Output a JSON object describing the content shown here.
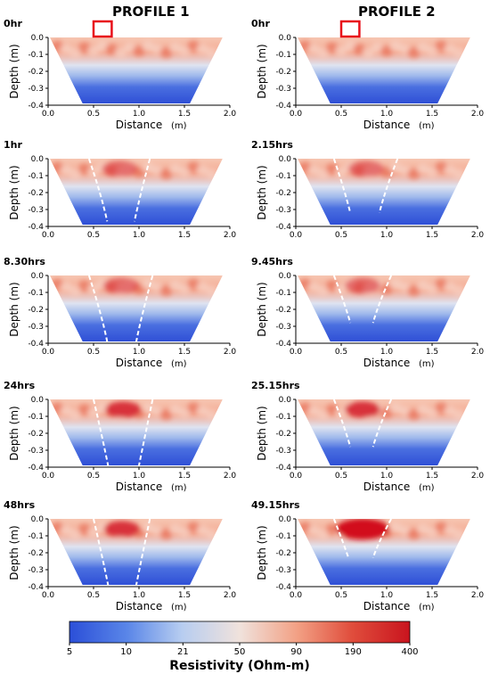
{
  "headers": [
    "PROFILE 1",
    "PROFILE 2"
  ],
  "colors": {
    "low": "#2b4fd8",
    "mid": "#dfe6f3",
    "high": "#d61f2a",
    "marker": "#e8101a",
    "dashed_boundary": "#ffffff"
  },
  "chart_data": [
    {
      "type": "heatmap",
      "profile": "PROFILE 1",
      "time": "0hr",
      "xlabel": "Distance",
      "xunit": "(m)",
      "ylabel": "Depth (m)",
      "xlim": [
        0,
        2.0
      ],
      "ylim": [
        -0.4,
        0.0
      ],
      "xticks": [
        "0.0",
        "0.5",
        "1.0",
        "1.5",
        "2.0"
      ],
      "yticks": [
        "0.0",
        "-0.1",
        "-0.2",
        "-0.3",
        "-0.4"
      ],
      "marker_x": [
        0.5,
        0.7
      ],
      "plume_half_width": null
    },
    {
      "type": "heatmap",
      "profile": "PROFILE 2",
      "time": "0hr",
      "xlabel": "Distance",
      "xunit": "(m)",
      "ylabel": "Depth (m)",
      "xlim": [
        0,
        2.0
      ],
      "ylim": [
        -0.4,
        0.0
      ],
      "xticks": [
        "0.0",
        "0.5",
        "1.0",
        "1.5",
        "2.0"
      ],
      "yticks": [
        "0.0",
        "-0.1",
        "-0.2",
        "-0.3",
        "-0.4"
      ],
      "marker_x": [
        0.5,
        0.7
      ],
      "plume_half_width": null
    },
    {
      "type": "heatmap",
      "profile": "PROFILE 1",
      "time": "1hr",
      "xlabel": "",
      "xunit": "",
      "ylabel": "Depth (m)",
      "xlim": [
        0,
        2.0
      ],
      "ylim": [
        -0.4,
        0.0
      ],
      "xticks": [
        "0.0",
        "0.5",
        "1.0",
        "1.5",
        "2.0"
      ],
      "yticks": [
        "0.0",
        "-0.1",
        "-0.2",
        "-0.3",
        "-0.4"
      ],
      "plume": {
        "top_left": 0.45,
        "top_right": 1.12,
        "bottom_left": 0.65,
        "bottom_right": 0.95,
        "bottom_depth": -0.37
      }
    },
    {
      "type": "heatmap",
      "profile": "PROFILE 2",
      "time": "2.15hrs",
      "xlabel": "",
      "xunit": "",
      "ylabel": "Depth (m)",
      "xlim": [
        0,
        2.0
      ],
      "ylim": [
        -0.4,
        0.0
      ],
      "xticks": [
        "0.0",
        "0.5",
        "1.0",
        "1.5",
        "2.0"
      ],
      "yticks": [
        "0.0",
        "-0.1",
        "-0.2",
        "-0.3",
        "-0.4"
      ],
      "plume": {
        "top_left": 0.42,
        "top_right": 1.12,
        "bottom_left": 0.6,
        "bottom_right": 0.92,
        "bottom_depth": -0.32
      }
    },
    {
      "type": "heatmap",
      "profile": "PROFILE 1",
      "time": "8.30hrs",
      "xlabel": "Distance",
      "xunit": "(m)",
      "ylabel": "Depth (m)",
      "xlim": [
        0,
        2.0
      ],
      "ylim": [
        -0.4,
        0.0
      ],
      "xticks": [
        "0.0",
        "0.5",
        "1.0",
        "1.5",
        "2.0"
      ],
      "yticks": [
        "0.0",
        "-0.1",
        "-0.2",
        "-0.3",
        "-0.4"
      ],
      "plume": {
        "top_left": 0.45,
        "top_right": 1.15,
        "bottom_left": 0.65,
        "bottom_right": 0.97,
        "bottom_depth": -0.39
      }
    },
    {
      "type": "heatmap",
      "profile": "PROFILE 2",
      "time": "9.45hrs",
      "xlabel": "Distance",
      "xunit": "(m)",
      "ylabel": "Depth (m)",
      "xlim": [
        0,
        2.0
      ],
      "ylim": [
        -0.4,
        0.0
      ],
      "xticks": [
        "0.0",
        "0.5",
        "1.0",
        "1.5",
        "2.0"
      ],
      "yticks": [
        "0.0",
        "-0.1",
        "-0.2",
        "-0.3",
        "-0.4"
      ],
      "plume": {
        "top_left": 0.42,
        "top_right": 1.05,
        "bottom_left": 0.6,
        "bottom_right": 0.85,
        "bottom_depth": -0.28
      }
    },
    {
      "type": "heatmap",
      "profile": "PROFILE 1",
      "time": "24hrs",
      "xlabel": "Distance",
      "xunit": "(m)",
      "ylabel": "Depth (m)",
      "xlim": [
        0,
        2.0
      ],
      "ylim": [
        -0.4,
        0.0
      ],
      "xticks": [
        "0.0",
        "0.5",
        "1.0",
        "1.5",
        "2.0"
      ],
      "yticks": [
        "0.0",
        "-0.1",
        "-0.2",
        "-0.3",
        "-0.4"
      ],
      "plume": {
        "top_left": 0.5,
        "top_right": 1.15,
        "bottom_left": 0.66,
        "bottom_right": 1.0,
        "bottom_depth": -0.39
      }
    },
    {
      "type": "heatmap",
      "profile": "PROFILE 2",
      "time": "25.15hrs",
      "xlabel": "Distance",
      "xunit": "(m)",
      "ylabel": "Depth (m)",
      "xlim": [
        0,
        2.0
      ],
      "ylim": [
        -0.4,
        0.0
      ],
      "xticks": [
        "0.0",
        "0.5",
        "1.0",
        "1.5",
        "2.0"
      ],
      "yticks": [
        "0.0",
        "-0.1",
        "-0.2",
        "-0.3",
        "-0.4"
      ],
      "plume": {
        "top_left": 0.42,
        "top_right": 1.05,
        "bottom_left": 0.6,
        "bottom_right": 0.85,
        "bottom_depth": -0.28
      }
    },
    {
      "type": "heatmap",
      "profile": "PROFILE 1",
      "time": "48hrs",
      "xlabel": "Distance",
      "xunit": "(m)",
      "ylabel": "Depth (m)",
      "xlim": [
        0,
        2.0
      ],
      "ylim": [
        -0.4,
        0.0
      ],
      "xticks": [
        "0.0",
        "0.5",
        "1.0",
        "1.5",
        "2.0"
      ],
      "yticks": [
        "0.0",
        "-0.1",
        "-0.2",
        "-0.3",
        "-0.4"
      ],
      "plume": {
        "top_left": 0.5,
        "top_right": 1.12,
        "bottom_left": 0.66,
        "bottom_right": 0.97,
        "bottom_depth": -0.39
      }
    },
    {
      "type": "heatmap",
      "profile": "PROFILE 2",
      "time": "49.15hrs",
      "xlabel": "Distance",
      "xunit": "(m)",
      "ylabel": "Depth (m)",
      "xlim": [
        0,
        2.0
      ],
      "ylim": [
        -0.4,
        0.0
      ],
      "xticks": [
        "0.0",
        "0.5",
        "1.0",
        "1.5",
        "2.0"
      ],
      "yticks": [
        "0.0",
        "-0.1",
        "-0.2",
        "-0.3",
        "-0.4"
      ],
      "plume": {
        "top_left": 0.42,
        "top_right": 1.05,
        "bottom_left": 0.58,
        "bottom_right": 0.85,
        "bottom_depth": -0.23
      }
    }
  ],
  "colorbar": {
    "ticks": [
      "5",
      "10",
      "21",
      "50",
      "90",
      "190",
      "400"
    ],
    "label": "Resistivity (Ohm-m)",
    "stops": [
      "#2b4fd8",
      "#5a86e8",
      "#b7cdf0",
      "#f0e2dc",
      "#f2a084",
      "#e04d3c",
      "#c9141e"
    ]
  }
}
